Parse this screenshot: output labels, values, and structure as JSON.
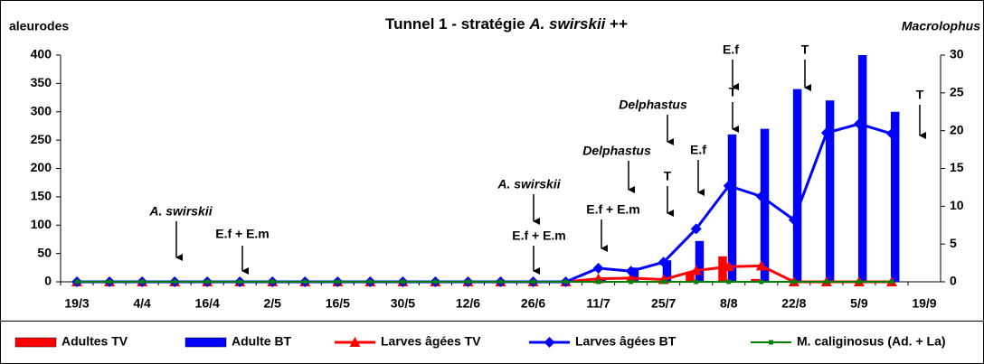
{
  "chart_data": {
    "type": "combo",
    "title": [
      "Tunnel 1  -  stratégie",
      "A. swirskii",
      "++"
    ],
    "y_label": "aleurodes",
    "y2_label": "Macrolophus",
    "categories": [
      "19/3",
      null,
      "4/4",
      null,
      "16/4",
      null,
      "2/5",
      null,
      "16/5",
      null,
      "30/5",
      null,
      "12/6",
      null,
      "26/6",
      null,
      "11/7",
      null,
      "25/7",
      null,
      "8/8",
      null,
      "22/8",
      null,
      "5/9",
      null,
      "19/9"
    ],
    "ylim": [
      0,
      400
    ],
    "yticks": [
      0,
      50,
      100,
      150,
      200,
      250,
      300,
      350,
      400
    ],
    "y2lim": [
      0,
      30
    ],
    "y2ticks": [
      0,
      5,
      10,
      15,
      20,
      25,
      30
    ],
    "grid": false,
    "legend": "bottom",
    "series": [
      {
        "name": "Adultes TV",
        "type": "bar",
        "color": "#ff0000",
        "values": [
          0,
          0,
          0,
          0,
          0,
          0,
          0,
          0,
          0,
          0,
          0,
          0,
          0,
          0,
          0,
          0,
          0,
          0,
          0,
          15,
          45,
          5,
          0,
          0,
          0,
          0,
          null
        ]
      },
      {
        "name": "Adulte BT",
        "type": "bar",
        "color": "#0000ff",
        "values": [
          0,
          0,
          0,
          0,
          0,
          0,
          0,
          0,
          0,
          0,
          0,
          0,
          0,
          0,
          0,
          0,
          5,
          25,
          38,
          72,
          260,
          270,
          340,
          320,
          400,
          300,
          null
        ]
      },
      {
        "name": "Larves âgées TV",
        "type": "line",
        "axis": "y2",
        "color": "#ff0000",
        "marker": "triangle",
        "values": [
          0,
          0,
          0,
          0,
          0,
          0,
          0,
          0,
          0,
          0,
          0,
          0,
          0,
          0,
          0,
          0,
          0.4,
          0.5,
          0.3,
          1.5,
          2,
          2.1,
          0,
          0,
          0,
          0,
          null
        ]
      },
      {
        "name": "Larves âgées BT",
        "type": "line",
        "axis": "y2",
        "color": "#0000ff",
        "marker": "diamond",
        "values": [
          0,
          0,
          0,
          0,
          0,
          0,
          0,
          0,
          0,
          0,
          0,
          0,
          0,
          0,
          0,
          0,
          1.8,
          1.4,
          2.6,
          7,
          12.7,
          11.3,
          8.2,
          19.7,
          20.9,
          19.6,
          null
        ]
      },
      {
        "name": "M. caliginosus (Ad. + La)",
        "type": "line",
        "axis": "y2",
        "color": "#008000",
        "marker": "square",
        "values": [
          0,
          0,
          0,
          0,
          0,
          0,
          0,
          0,
          0,
          0,
          0,
          0,
          0,
          0,
          0,
          0,
          0,
          0,
          0,
          0,
          0,
          0,
          0,
          0,
          0,
          0,
          null
        ]
      }
    ],
    "annotations": [
      {
        "text": "A. swirskii",
        "italic": true,
        "color": "#000000"
      },
      {
        "text": "E.f + E.m",
        "italic": false,
        "color": "#000000"
      },
      {
        "text": "A. swirskii",
        "italic": true,
        "color": "#000000"
      },
      {
        "text": "E.f + E.m",
        "italic": false,
        "color": "#000000"
      },
      {
        "text": "E.f + E.m",
        "italic": false,
        "color": "#000000"
      },
      {
        "text": "Delphastus",
        "italic": true,
        "color": "#000000"
      },
      {
        "text": "T",
        "italic": false,
        "color": "#ff0000"
      },
      {
        "text": "Delphastus",
        "italic": true,
        "color": "#000000"
      },
      {
        "text": "E.f",
        "italic": false,
        "color": "#000000"
      },
      {
        "text": "E.f",
        "italic": false,
        "color": "#000000"
      },
      {
        "text": "T",
        "italic": false,
        "color": "#ff0000"
      },
      {
        "text": "T",
        "italic": false,
        "color": "#ff0000"
      },
      {
        "text": "T",
        "italic": false,
        "color": "#ff0000"
      }
    ]
  }
}
